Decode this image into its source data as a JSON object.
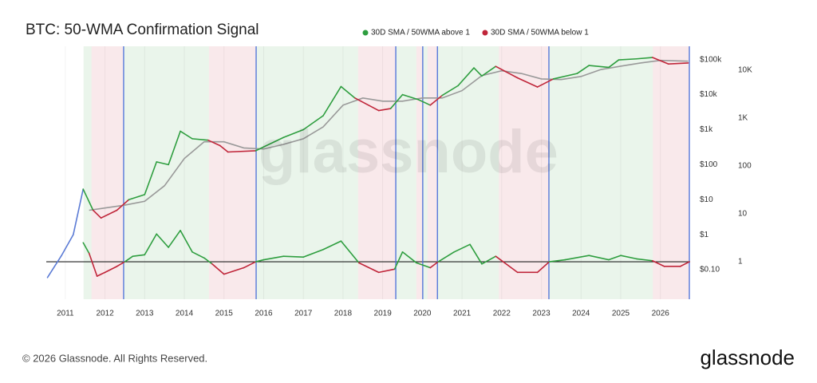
{
  "chart_data": {
    "type": "line",
    "title": "BTC: 50-WMA Confirmation Signal",
    "watermark": "glassnode",
    "copyright": "© 2026 Glassnode. All Rights Reserved.",
    "brand": "glassnode",
    "log_scale": true,
    "xlim": [
      2010.52,
      2026.75
    ],
    "xticks": [
      2011,
      2012,
      2013,
      2014,
      2015,
      2016,
      2017,
      2018,
      2019,
      2020,
      2021,
      2022,
      2023,
      2024,
      2025,
      2026
    ],
    "ylim": [
      0.0144,
      240000
    ],
    "yticks": [
      {
        "value": 0.1,
        "label": "$0.10"
      },
      {
        "value": 1,
        "label": "$1"
      },
      {
        "value": 10,
        "label": "$10"
      },
      {
        "value": 100,
        "label": "$100"
      },
      {
        "value": 1000,
        "label": "$1k"
      },
      {
        "value": 10000,
        "label": "$10k"
      },
      {
        "value": 100000,
        "label": "$100k"
      }
    ],
    "y2lim": [
      0.165,
      31600
    ],
    "y2ticks": [
      1,
      10,
      100,
      {
        "value": 1000,
        "label": "1K"
      },
      {
        "value": 10000,
        "label": "10K"
      }
    ],
    "series": [
      {
        "name": "30D SMA / 50WMA above 1",
        "color": "#2e9e3f",
        "regions": [
          [
            2011.46,
            2011.66
          ],
          [
            2012.47,
            2014.62
          ],
          [
            2015.81,
            2018.38
          ],
          [
            2019.33,
            2019.85
          ],
          [
            2020.01,
            2020.13
          ],
          [
            2020.38,
            2021.93
          ],
          [
            2023.19,
            2025.81
          ]
        ]
      },
      {
        "name": "30D SMA / 50WMA below 1",
        "color": "#c0263a",
        "regions": [
          [
            2011.66,
            2012.47
          ],
          [
            2014.62,
            2015.81
          ],
          [
            2018.38,
            2019.33
          ],
          [
            2019.85,
            2020.01
          ],
          [
            2020.13,
            2020.38
          ],
          [
            2021.93,
            2023.19
          ],
          [
            2025.81,
            2026.73
          ]
        ]
      }
    ],
    "base_color": "#5b7bd5",
    "signal_color": "#4a6fd8",
    "signals": [
      2012.47,
      2015.81,
      2019.33,
      2020.01,
      2020.38,
      2023.19,
      2026.73
    ],
    "price": {
      "x": [
        2010.55,
        2010.9,
        2011.2,
        2011.45,
        2011.7,
        2011.9,
        2012.3,
        2012.6,
        2013.0,
        2013.3,
        2013.6,
        2013.9,
        2014.2,
        2014.6,
        2014.9,
        2015.1,
        2015.8,
        2016.5,
        2017.0,
        2017.5,
        2017.95,
        2018.3,
        2018.9,
        2019.2,
        2019.5,
        2019.9,
        2020.2,
        2020.5,
        2020.9,
        2021.3,
        2021.5,
        2021.85,
        2022.4,
        2022.9,
        2023.3,
        2023.9,
        2024.2,
        2024.7,
        2024.95,
        2025.4,
        2025.8,
        2026.2,
        2026.7
      ],
      "values": [
        0.06,
        0.25,
        1,
        20,
        5,
        3,
        5,
        10,
        14,
        120,
        100,
        900,
        550,
        500,
        350,
        230,
        250,
        600,
        1000,
        2500,
        17000,
        8000,
        3500,
        4000,
        10000,
        7200,
        5000,
        9500,
        18000,
        58000,
        34000,
        64000,
        30000,
        16500,
        28000,
        40000,
        68000,
        60000,
        98000,
        105000,
        115000,
        75000,
        80000
      ]
    },
    "wma": {
      "color": "#999999",
      "x": [
        2011.6,
        2012.5,
        2013.0,
        2013.5,
        2014.0,
        2014.5,
        2015.0,
        2015.5,
        2016.0,
        2016.5,
        2017.0,
        2017.5,
        2018.0,
        2018.5,
        2019.0,
        2019.5,
        2020.0,
        2020.5,
        2021.0,
        2021.5,
        2022.0,
        2022.5,
        2023.0,
        2023.5,
        2024.0,
        2024.5,
        2025.0,
        2025.5,
        2026.0,
        2026.7
      ],
      "values": [
        5,
        7,
        9,
        25,
        150,
        450,
        450,
        300,
        280,
        380,
        550,
        1200,
        5000,
        8000,
        6500,
        6500,
        8000,
        8000,
        13000,
        35000,
        48000,
        40000,
        28000,
        27000,
        33000,
        52000,
        65000,
        80000,
        95000,
        90000
      ]
    },
    "ratio": {
      "axis": "y2",
      "x": [
        2011.45,
        2011.6,
        2011.8,
        2012.0,
        2012.3,
        2012.5,
        2012.7,
        2013.0,
        2013.3,
        2013.6,
        2013.9,
        2014.2,
        2014.5,
        2014.7,
        2015.0,
        2015.5,
        2015.8,
        2016.0,
        2016.5,
        2017.0,
        2017.5,
        2017.95,
        2018.4,
        2018.9,
        2019.3,
        2019.5,
        2019.85,
        2020.2,
        2020.4,
        2020.8,
        2021.2,
        2021.5,
        2021.85,
        2022.4,
        2022.9,
        2023.2,
        2023.6,
        2024.2,
        2024.7,
        2025.0,
        2025.4,
        2025.8,
        2026.1,
        2026.5,
        2026.73
      ],
      "values": [
        2.5,
        1.5,
        0.5,
        0.6,
        0.8,
        1.0,
        1.3,
        1.4,
        3.8,
        2.0,
        4.5,
        1.6,
        1.2,
        0.9,
        0.55,
        0.75,
        1.0,
        1.1,
        1.3,
        1.25,
        1.8,
        2.7,
        0.95,
        0.6,
        0.7,
        1.6,
        0.95,
        0.75,
        1.0,
        1.6,
        2.3,
        0.9,
        1.3,
        0.6,
        0.6,
        1.0,
        1.1,
        1.35,
        1.1,
        1.35,
        1.15,
        1.05,
        0.8,
        0.8,
        1.0
      ]
    }
  }
}
